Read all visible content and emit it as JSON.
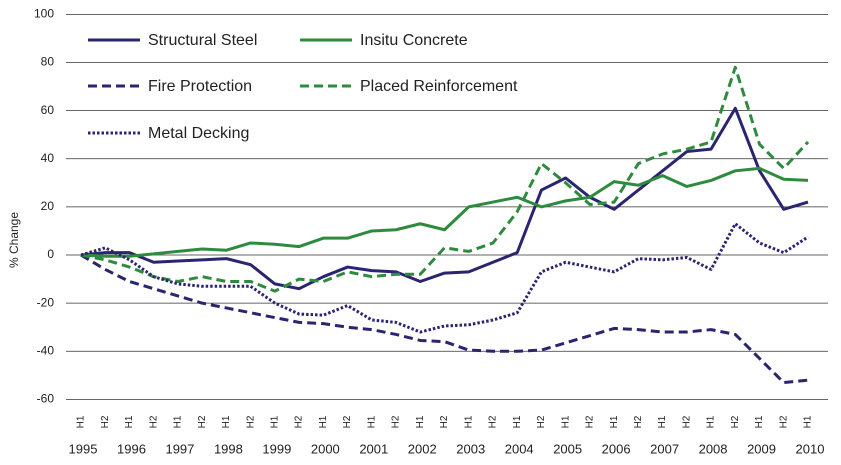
{
  "chart_data": {
    "type": "line",
    "y_label": "% Change",
    "categories": [
      "H1",
      "H2",
      "H1",
      "H2",
      "H1",
      "H2",
      "H1",
      "H2",
      "H1",
      "H2",
      "H1",
      "H2",
      "H1",
      "H2",
      "H1",
      "H2",
      "H1",
      "H2",
      "H1",
      "H2",
      "H1",
      "H2",
      "H1",
      "H2",
      "H1",
      "H2",
      "H1",
      "H2",
      "H1",
      "H2",
      "H1"
    ],
    "years": [
      "1995",
      "1996",
      "1997",
      "1998",
      "1999",
      "2000",
      "2001",
      "2002",
      "2003",
      "2004",
      "2005",
      "2006",
      "2007",
      "2008",
      "2009",
      "2010"
    ],
    "ylim": [
      -60,
      100
    ],
    "yticks": [
      -60,
      -40,
      -20,
      0,
      20,
      40,
      60,
      80,
      100
    ],
    "grid": true,
    "series": [
      {
        "name": "Structural Steel",
        "color": "#2b2570",
        "dash": "solid",
        "values": [
          0,
          1,
          1,
          -3,
          -2.5,
          -2,
          -1.5,
          -4,
          -12,
          -14,
          -9,
          -5,
          -6.5,
          -7,
          -11,
          -7.5,
          -7,
          -3,
          1,
          27,
          32,
          24,
          19,
          27,
          35,
          43,
          44,
          61,
          35,
          19,
          22
        ]
      },
      {
        "name": "Insitu Concrete",
        "color": "#2e8b3e",
        "dash": "solid",
        "values": [
          0,
          -0.5,
          -0.5,
          0.5,
          1.5,
          2.5,
          2,
          5,
          4.5,
          3.5,
          7,
          7,
          10,
          10.5,
          13,
          10.5,
          20,
          22,
          24,
          20,
          22.5,
          24,
          30.5,
          29,
          33,
          28.5,
          31,
          35,
          36,
          31.5,
          31
        ]
      },
      {
        "name": "Fire Protection",
        "color": "#2b2570",
        "dash": "dashed",
        "values": [
          0,
          -6,
          -11,
          -14,
          -17,
          -20,
          -22,
          -24,
          -26,
          -28,
          -28.5,
          -30,
          -31,
          -33,
          -35.5,
          -36,
          -39.5,
          -40,
          -40,
          -39.5,
          -36.5,
          -33.5,
          -30.5,
          -31,
          -32,
          -32,
          -31,
          -33,
          -43,
          -53,
          -52
        ]
      },
      {
        "name": "Placed Reinforcement",
        "color": "#2e8b3e",
        "dash": "dashed",
        "values": [
          0,
          -2,
          -5,
          -9,
          -11,
          -9,
          -11,
          -11,
          -15,
          -10,
          -11,
          -7,
          -9,
          -8,
          -8,
          3,
          1.5,
          5,
          18,
          38,
          30,
          21,
          22,
          38,
          42,
          44,
          47,
          78,
          46,
          36,
          47
        ]
      },
      {
        "name": "Metal Decking",
        "color": "#2b2570",
        "dash": "dotted",
        "values": [
          0,
          3,
          -2,
          -9,
          -12,
          -13,
          -13,
          -13,
          -20,
          -24.5,
          -25,
          -21,
          -27,
          -28,
          -32,
          -29.5,
          -29,
          -27,
          -24,
          -7,
          -3,
          -5,
          -7,
          -1.5,
          -2,
          -1,
          -6,
          13,
          5,
          1,
          7.5
        ]
      }
    ]
  }
}
